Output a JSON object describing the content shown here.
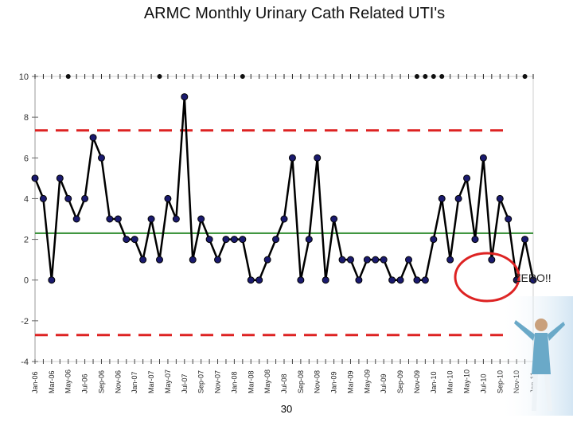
{
  "chart_data": {
    "type": "line",
    "title": "ARMC Monthly Urinary Cath Related UTI's",
    "xlabel": "",
    "ylabel": "",
    "ylim": [
      -4,
      10
    ],
    "yticks": [
      -4,
      -2,
      0,
      2,
      4,
      6,
      8,
      10
    ],
    "grid": false,
    "legend": "none",
    "x_tick_labels": [
      "Jan-06",
      "Mar-06",
      "May-06",
      "Jul-06",
      "Sep-06",
      "Nov-06",
      "Jan-07",
      "Mar-07",
      "May-07",
      "Jul-07",
      "Sep-07",
      "Nov-07",
      "Jan-08",
      "Mar-08",
      "May-08",
      "Jul-08",
      "Sep-08",
      "Nov-08",
      "Jan-09",
      "Mar-09",
      "May-09",
      "Jul-09",
      "Sep-09",
      "Nov-09",
      "Jan-10",
      "Mar-10",
      "May-10",
      "Jul-10",
      "Sep-10",
      "Nov-10",
      "Jan-11"
    ],
    "series": [
      {
        "values": [
          5,
          4,
          0,
          5,
          4,
          3,
          4,
          7,
          6,
          3,
          3,
          2,
          2,
          1,
          3,
          1,
          4,
          3,
          9,
          1,
          3,
          2,
          1,
          2,
          2,
          2,
          0,
          0,
          1,
          2,
          3,
          6,
          0,
          2,
          6,
          0,
          3,
          1,
          1,
          0,
          1,
          1,
          1,
          0,
          0,
          1,
          0,
          0,
          2,
          4,
          1,
          4,
          5,
          2,
          6,
          1,
          4,
          3,
          0,
          2,
          0
        ],
        "color": "#000000",
        "marker_color": "#1a1a6e"
      }
    ],
    "reference_lines": [
      {
        "kind": "mean",
        "value": 2.3,
        "color": "#2e8b2e",
        "style": "solid"
      },
      {
        "kind": "upper-control-limit",
        "value": 7.35,
        "color": "#dd2222",
        "style": "dashed"
      },
      {
        "kind": "lower-control-limit",
        "value": -2.7,
        "color": "#dd2222",
        "style": "dashed"
      }
    ],
    "top_axis_markers": [
      4,
      15,
      25,
      46,
      47,
      48,
      49,
      59
    ]
  },
  "annotation": {
    "text": "ZERO!!",
    "circle_color": "#dd2222"
  },
  "footer": {
    "slide_number": "30"
  },
  "decor": {
    "figure_image": "person-arms-raised"
  }
}
